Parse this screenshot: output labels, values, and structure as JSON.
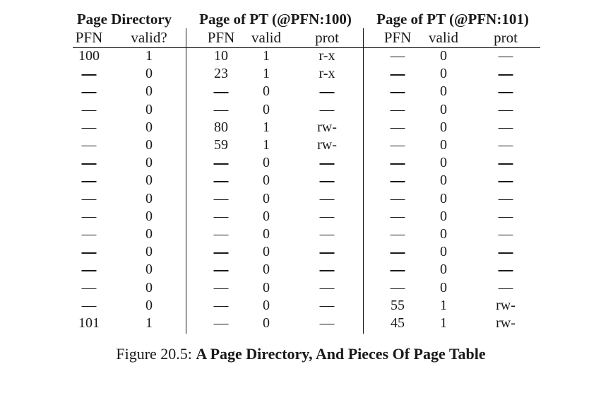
{
  "groups": [
    {
      "title": "Page Directory",
      "columns": [
        "PFN",
        "valid?"
      ]
    },
    {
      "title": "Page of PT (@PFN:100)",
      "columns": [
        "PFN",
        "valid",
        "prot"
      ]
    },
    {
      "title": "Page of PT (@PFN:101)",
      "columns": [
        "PFN",
        "valid",
        "prot"
      ]
    }
  ],
  "rows": [
    [
      "100",
      "1",
      "10",
      "1",
      "r-x",
      "—",
      "0",
      "—"
    ],
    [
      "—",
      "0",
      "23",
      "1",
      "r-x",
      "—",
      "0",
      "—"
    ],
    [
      "—",
      "0",
      "—",
      "0",
      "—",
      "—",
      "0",
      "—"
    ],
    [
      "—",
      "0",
      "—",
      "0",
      "—",
      "—",
      "0",
      "—"
    ],
    [
      "—",
      "0",
      "80",
      "1",
      "rw-",
      "—",
      "0",
      "—"
    ],
    [
      "—",
      "0",
      "59",
      "1",
      "rw-",
      "—",
      "0",
      "—"
    ],
    [
      "—",
      "0",
      "—",
      "0",
      "—",
      "—",
      "0",
      "—"
    ],
    [
      "—",
      "0",
      "—",
      "0",
      "—",
      "—",
      "0",
      "—"
    ],
    [
      "—",
      "0",
      "—",
      "0",
      "—",
      "—",
      "0",
      "—"
    ],
    [
      "—",
      "0",
      "—",
      "0",
      "—",
      "—",
      "0",
      "—"
    ],
    [
      "—",
      "0",
      "—",
      "0",
      "—",
      "—",
      "0",
      "—"
    ],
    [
      "—",
      "0",
      "—",
      "0",
      "—",
      "—",
      "0",
      "—"
    ],
    [
      "—",
      "0",
      "—",
      "0",
      "—",
      "—",
      "0",
      "—"
    ],
    [
      "—",
      "0",
      "—",
      "0",
      "—",
      "—",
      "0",
      "—"
    ],
    [
      "—",
      "0",
      "—",
      "0",
      "—",
      "55",
      "1",
      "rw-"
    ],
    [
      "101",
      "1",
      "—",
      "0",
      "—",
      "45",
      "1",
      "rw-"
    ]
  ],
  "caption": {
    "prefix": "Figure 20.5: ",
    "title": "A Page Directory, And Pieces Of Page Table"
  }
}
